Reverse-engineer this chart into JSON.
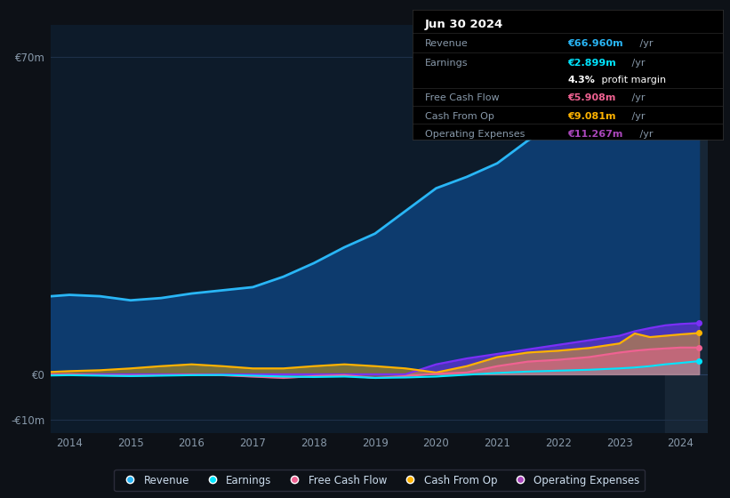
{
  "background_color": "#0d1117",
  "plot_bg_color": "#0d1b2a",
  "grid_color": "#1e3048",
  "years": [
    2013.5,
    2014.0,
    2014.5,
    2015.0,
    2015.5,
    2016.0,
    2016.5,
    2017.0,
    2017.5,
    2018.0,
    2018.5,
    2019.0,
    2019.5,
    2020.0,
    2020.5,
    2021.0,
    2021.5,
    2022.0,
    2022.5,
    2023.0,
    2023.25,
    2023.5,
    2023.75,
    2024.0,
    2024.3
  ],
  "revenue": [
    17.0,
    17.5,
    17.2,
    16.3,
    16.8,
    17.8,
    18.5,
    19.2,
    21.5,
    24.5,
    28.0,
    31.0,
    36.0,
    41.0,
    43.5,
    46.5,
    51.5,
    55.5,
    58.5,
    63.0,
    65.0,
    66.5,
    67.0,
    67.0,
    67.0
  ],
  "earnings": [
    -0.3,
    -0.2,
    -0.3,
    -0.4,
    -0.3,
    -0.2,
    -0.15,
    -0.3,
    -0.5,
    -0.6,
    -0.5,
    -0.8,
    -0.7,
    -0.5,
    -0.1,
    0.3,
    0.6,
    0.8,
    1.0,
    1.3,
    1.5,
    1.8,
    2.2,
    2.5,
    2.9
  ],
  "free_cash_flow": [
    -0.1,
    0.0,
    -0.2,
    -0.3,
    -0.2,
    -0.1,
    -0.2,
    -0.5,
    -0.8,
    -0.4,
    -0.2,
    -0.8,
    -0.4,
    0.1,
    0.4,
    1.8,
    2.8,
    3.2,
    3.8,
    4.8,
    5.2,
    5.5,
    5.7,
    5.9,
    5.9
  ],
  "cash_from_op": [
    0.4,
    0.7,
    0.9,
    1.3,
    1.8,
    2.2,
    1.8,
    1.3,
    1.3,
    1.8,
    2.2,
    1.8,
    1.3,
    0.4,
    1.8,
    3.8,
    4.8,
    5.2,
    5.8,
    6.8,
    9.0,
    8.2,
    8.5,
    8.8,
    9.1
  ],
  "operating_expenses": [
    0.0,
    0.0,
    0.0,
    0.0,
    0.0,
    0.0,
    0.0,
    0.0,
    0.0,
    0.0,
    0.0,
    0.0,
    0.0,
    2.2,
    3.5,
    4.5,
    5.5,
    6.5,
    7.5,
    8.5,
    9.5,
    10.2,
    10.8,
    11.1,
    11.3
  ],
  "revenue_color": "#29b6f6",
  "earnings_color": "#00e5ff",
  "free_cash_flow_color": "#f06292",
  "cash_from_op_color": "#ffb300",
  "operating_expenses_color": "#7b2ff7",
  "revenue_fill_color": "#0d3b6e",
  "ylim": [
    -13,
    77
  ],
  "yticks": [
    -10,
    0,
    70
  ],
  "ytick_labels": [
    "-€10m",
    "€0",
    "€70m"
  ],
  "xlim": [
    2013.7,
    2024.45
  ],
  "xticks": [
    2014,
    2015,
    2016,
    2017,
    2018,
    2019,
    2020,
    2021,
    2022,
    2023,
    2024
  ],
  "highlight_x_start": 2023.75,
  "highlight_x_end": 2024.45,
  "info_box": {
    "title": "Jun 30 2024",
    "rows": [
      {
        "label": "Revenue",
        "value": "€66.960m",
        "suffix": " /yr",
        "value_color": "#29b6f6"
      },
      {
        "label": "Earnings",
        "value": "€2.899m",
        "suffix": " /yr",
        "value_color": "#00e5ff"
      },
      {
        "label": "",
        "bold": "4.3%",
        "rest": " profit margin",
        "value_color": "#ffffff"
      },
      {
        "label": "Free Cash Flow",
        "value": "€5.908m",
        "suffix": " /yr",
        "value_color": "#f06292"
      },
      {
        "label": "Cash From Op",
        "value": "€9.081m",
        "suffix": " /yr",
        "value_color": "#ffb300"
      },
      {
        "label": "Operating Expenses",
        "value": "€11.267m",
        "suffix": " /yr",
        "value_color": "#ab47bc"
      }
    ]
  },
  "legend": [
    {
      "label": "Revenue",
      "color": "#29b6f6"
    },
    {
      "label": "Earnings",
      "color": "#00e5ff"
    },
    {
      "label": "Free Cash Flow",
      "color": "#f06292"
    },
    {
      "label": "Cash From Op",
      "color": "#ffb300"
    },
    {
      "label": "Operating Expenses",
      "color": "#ab47bc"
    }
  ]
}
